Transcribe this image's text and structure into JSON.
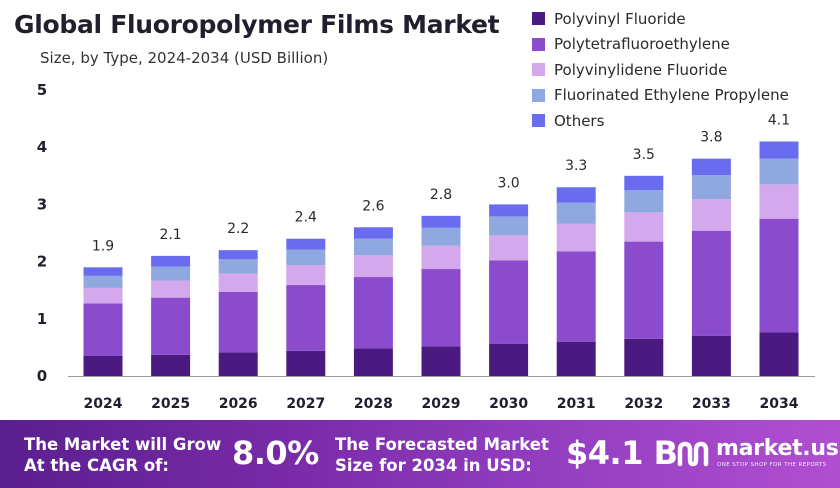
{
  "header": {
    "title": "Global Fluoropolymer Films Market",
    "subtitle": "Size, by Type, 2024-2034 (USD Billion)"
  },
  "colors": {
    "pvf": "#4a1a80",
    "ptfe": "#8a4ccc",
    "pvdf": "#d4a8ec",
    "fep": "#8fa8df",
    "others": "#6a6cf0",
    "footer_start": "#5a1f8f",
    "footer_end": "#b04fd0"
  },
  "chart_data": {
    "type": "bar",
    "stacked": true,
    "categories": [
      "2024",
      "2025",
      "2026",
      "2027",
      "2028",
      "2029",
      "2030",
      "2031",
      "2032",
      "2033",
      "2034"
    ],
    "totals": [
      "1.9",
      "2.1",
      "2.2",
      "2.4",
      "2.6",
      "2.8",
      "3.0",
      "3.3",
      "3.5",
      "3.8",
      "4.1"
    ],
    "ylim": [
      0,
      5
    ],
    "yticks": [
      "0",
      "1",
      "2",
      "3",
      "4",
      "5"
    ],
    "grid": false,
    "legend_position": "top-right",
    "series": [
      {
        "name": "Polyvinyl Fluoride",
        "color": "#4a1a80",
        "values": [
          0.35,
          0.37,
          0.41,
          0.44,
          0.48,
          0.52,
          0.56,
          0.6,
          0.65,
          0.7,
          0.76
        ]
      },
      {
        "name": "Polytetrafluoroethylene",
        "color": "#8a4ccc",
        "values": [
          0.92,
          1.0,
          1.06,
          1.15,
          1.25,
          1.35,
          1.46,
          1.58,
          1.7,
          1.84,
          1.99
        ]
      },
      {
        "name": "Polyvinylidene Fluoride",
        "color": "#d4a8ec",
        "values": [
          0.27,
          0.3,
          0.32,
          0.35,
          0.38,
          0.41,
          0.44,
          0.48,
          0.51,
          0.55,
          0.6
        ]
      },
      {
        "name": "Fluorinated Ethylene Propylene",
        "color": "#8fa8df",
        "values": [
          0.21,
          0.24,
          0.25,
          0.27,
          0.29,
          0.31,
          0.33,
          0.37,
          0.39,
          0.42,
          0.45
        ]
      },
      {
        "name": "Others",
        "color": "#6a6cf0",
        "values": [
          0.15,
          0.19,
          0.16,
          0.19,
          0.2,
          0.21,
          0.21,
          0.27,
          0.25,
          0.29,
          0.3
        ]
      }
    ]
  },
  "footer": {
    "cagr_text": "The Market will Grow At the CAGR of:",
    "cagr_value": "8.0%",
    "forecast_text": "The Forecasted Market Size for 2034 in USD:",
    "forecast_value": "$4.1 B",
    "brand_name": "market.us",
    "brand_tagline": "ONE STOP SHOP FOR THE REPORTS",
    "brand_icon": "market-us-logo-icon"
  }
}
